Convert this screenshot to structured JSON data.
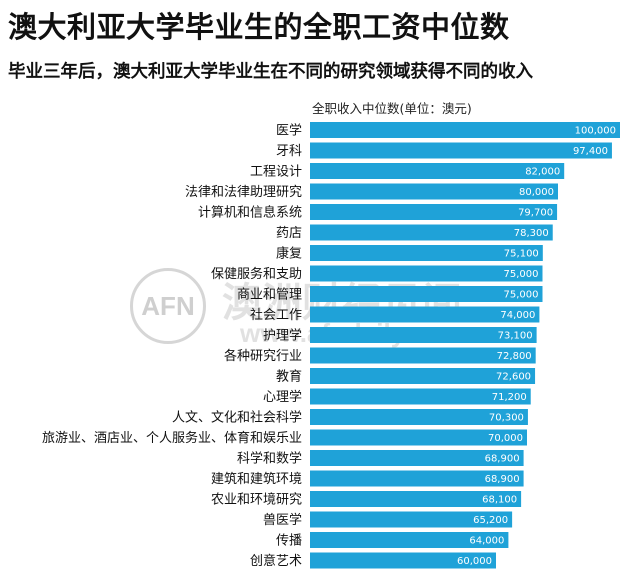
{
  "title": "澳大利亚大学毕业生的全职工资中位数",
  "subtitle": "毕业三年后，澳大利亚大学毕业生在不同的研究领域获得不同的收入",
  "watermark": {
    "logo": "AFN",
    "name": "澳洲财经见闻",
    "url": "www.afndaily.com"
  },
  "chart_data": {
    "type": "bar",
    "orientation": "horizontal",
    "ylabel": "全职收入中位数(单位：澳元)",
    "bar_color": "#1fa2d8",
    "categories": [
      "医学",
      "牙科",
      "工程设计",
      "法律和法律助理研究",
      "计算机和信息系统",
      "药店",
      "康复",
      "保健服务和支助",
      "商业和管理",
      "社会工作",
      "护理学",
      "各种研究行业",
      "教育",
      "心理学",
      "人文、文化和社会科学",
      "旅游业、酒店业、个人服务业、体育和娱乐业",
      "科学和数学",
      "建筑和建筑环境",
      "农业和环境研究",
      "兽医学",
      "传播",
      "创意艺术"
    ],
    "values": [
      100000,
      97400,
      82000,
      80000,
      79700,
      78300,
      75100,
      75000,
      75000,
      74000,
      73100,
      72800,
      72600,
      71200,
      70300,
      70000,
      68900,
      68900,
      68100,
      65200,
      64000,
      60000
    ],
    "value_labels": [
      "100,000",
      "97,400",
      "82,000",
      "80,000",
      "79,700",
      "78,300",
      "75,100",
      "75,000",
      "75,000",
      "74,000",
      "73,100",
      "72,800",
      "72,600",
      "71,200",
      "70,300",
      "70,000",
      "68,900",
      "68,900",
      "68,100",
      "65,200",
      "64,000",
      "60,000"
    ],
    "xlim": [
      0,
      100000
    ],
    "grid": false,
    "legend": "none"
  }
}
